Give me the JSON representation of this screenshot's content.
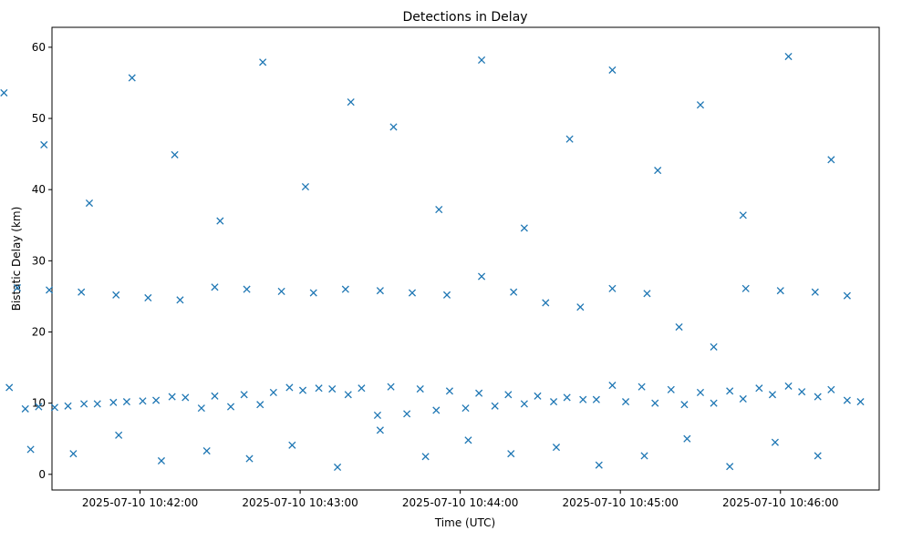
{
  "chart_data": {
    "type": "scatter",
    "title": "Detections in Delay",
    "xlabel": "Time (UTC)",
    "ylabel": "Bistatic Delay (km)",
    "x_ticks": [
      "2025-07-10 10:42:00",
      "2025-07-10 10:43:00",
      "2025-07-10 10:44:00",
      "2025-07-10 10:45:00",
      "2025-07-10 10:46:00"
    ],
    "y_ticks": [
      "0",
      "10",
      "20",
      "30",
      "40",
      "50",
      "60"
    ],
    "xlim": [
      "2025-07-10 10:41:27",
      "2025-07-10 10:46:37"
    ],
    "ylim": [
      -2.2,
      62.8
    ],
    "grid": false,
    "marker": "x",
    "color": "#1f77b4",
    "x_units": "seconds after 2025-07-10 10:41:00",
    "x": [
      0,
      11,
      22,
      33,
      44,
      55,
      66,
      77,
      88,
      99,
      110,
      121,
      132,
      143,
      154,
      165,
      176,
      187,
      198,
      209,
      220,
      231,
      242,
      253,
      264,
      275,
      286,
      297,
      308,
      319,
      330,
      6,
      17,
      28,
      39,
      50,
      61,
      72,
      83,
      94,
      105,
      116,
      127,
      138,
      149,
      160,
      171,
      182,
      193,
      204,
      215,
      226,
      237,
      248,
      259,
      270,
      281,
      292,
      303,
      314,
      325,
      4,
      14,
      26,
      38,
      51,
      63,
      75,
      88,
      100,
      113,
      125,
      137,
      150,
      162,
      175,
      188,
      200,
      212,
      225,
      237,
      250,
      262,
      275,
      287,
      300,
      313,
      325,
      9,
      24,
      41,
      57,
      73,
      90,
      106,
      122,
      139,
      155,
      172,
      188,
      204,
      221,
      237,
      254,
      270,
      286,
      303,
      319,
      2,
      19,
      35,
      52,
      68,
      85,
      101,
      117,
      134,
      150,
      167,
      183,
      199,
      216,
      232,
      249,
      265,
      281,
      298,
      314
    ],
    "y": [
      12.3,
      12.2,
      9.5,
      9.6,
      9.9,
      10.2,
      10.4,
      10.8,
      11.0,
      11.2,
      11.5,
      11.8,
      12.0,
      12.1,
      12.3,
      12.0,
      11.7,
      11.4,
      11.2,
      11.0,
      10.8,
      10.5,
      10.2,
      10.0,
      9.8,
      10.0,
      10.6,
      11.2,
      11.6,
      11.9,
      10.2,
      8.8,
      9.2,
      9.4,
      9.9,
      10.1,
      10.3,
      10.9,
      9.3,
      9.5,
      9.8,
      12.2,
      12.1,
      11.2,
      8.3,
      8.5,
      9.0,
      9.3,
      9.6,
      9.9,
      10.2,
      10.5,
      12.5,
      12.3,
      11.9,
      11.5,
      11.7,
      12.1,
      12.4,
      10.9,
      10.4,
      30.2,
      26.2,
      25.9,
      25.6,
      25.2,
      24.8,
      24.5,
      26.3,
      26.0,
      25.7,
      25.5,
      26.0,
      25.8,
      25.5,
      25.2,
      27.8,
      25.6,
      24.1,
      23.5,
      26.1,
      25.4,
      20.7,
      17.9,
      26.1,
      25.8,
      25.6,
      25.1,
      53.6,
      46.3,
      38.1,
      55.7,
      44.9,
      35.6,
      57.9,
      40.4,
      52.3,
      48.8,
      37.2,
      58.2,
      34.6,
      47.1,
      56.8,
      42.7,
      51.9,
      36.4,
      58.7,
      44.2,
      6.4,
      3.5,
      2.9,
      5.5,
      1.9,
      3.3,
      2.2,
      4.1,
      1.0,
      6.2,
      2.5,
      4.8,
      2.9,
      3.8,
      1.3,
      2.6,
      5.0,
      1.1,
      4.5,
      2.6
    ]
  }
}
